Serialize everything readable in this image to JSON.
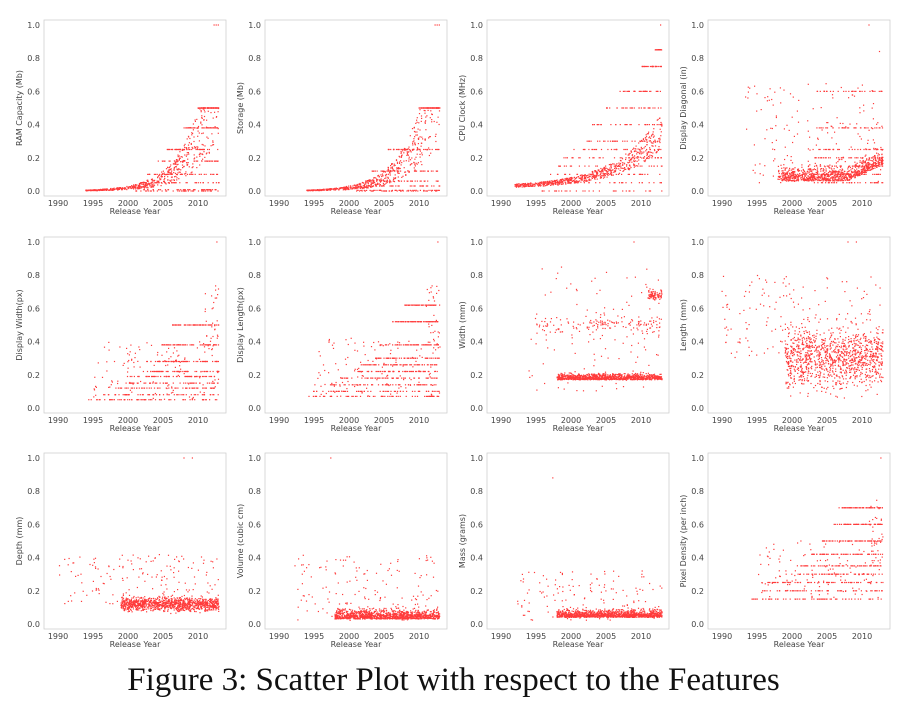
{
  "caption": "Figure 3: Scatter Plot with respect to the Features",
  "colors": {
    "points": "#ff3b3b",
    "frame": "#d0d0d0",
    "text": "#444444"
  },
  "chart_data": [
    {
      "type": "scatter",
      "xlabel": "Release Year",
      "ylabel": "RAM Capacity (Mb)",
      "xlim": [
        1988,
        2014
      ],
      "ylim": [
        -0.03,
        1.03
      ],
      "xticks": [
        "1990",
        "1995",
        "2000",
        "2005",
        "2010"
      ],
      "yticks": [
        "0.0",
        "0.2",
        "0.4",
        "0.6",
        "0.8",
        "1.0"
      ],
      "pattern": "exp",
      "p": [
        0.0,
        0.008,
        0.05,
        0.1,
        0.18,
        0.25,
        0.38,
        0.5
      ],
      "ymax": 1.0
    },
    {
      "type": "scatter",
      "xlabel": "Release Year",
      "ylabel": "Storage (Mb)",
      "xlim": [
        1988,
        2014
      ],
      "ylim": [
        -0.03,
        1.03
      ],
      "xticks": [
        "1990",
        "1995",
        "2000",
        "2005",
        "2010"
      ],
      "yticks": [
        "0.0",
        "0.2",
        "0.4",
        "0.6",
        "0.8",
        "1.0"
      ],
      "pattern": "exp",
      "p": [
        0.0,
        0.004,
        0.03,
        0.06,
        0.12,
        0.25,
        0.5
      ],
      "ymax": 1.0
    },
    {
      "type": "scatter",
      "xlabel": "Release Year",
      "ylabel": "CPU Clock (MHz)",
      "xlim": [
        1988,
        2014
      ],
      "ylim": [
        -0.03,
        1.03
      ],
      "xticks": [
        "1990",
        "1995",
        "2000",
        "2005",
        "2010"
      ],
      "yticks": [
        "0.0",
        "0.2",
        "0.4",
        "0.6",
        "0.8",
        "1.0"
      ],
      "pattern": "exp2",
      "p": [
        0.0,
        0.05,
        0.1,
        0.15,
        0.2,
        0.25,
        0.3,
        0.4,
        0.5,
        0.6,
        0.75,
        0.85
      ],
      "ymax": 1.0
    },
    {
      "type": "scatter",
      "xlabel": "Release Year",
      "ylabel": "Display Diagonal (in)",
      "xlim": [
        1988,
        2014
      ],
      "ylim": [
        -0.03,
        1.03
      ],
      "xticks": [
        "1990",
        "1995",
        "2000",
        "2005",
        "2010"
      ],
      "yticks": [
        "0.0",
        "0.2",
        "0.4",
        "0.6",
        "0.8",
        "1.0"
      ],
      "pattern": "diag",
      "p": [
        0.05,
        0.1,
        0.15,
        0.2,
        0.25,
        0.38,
        0.6
      ],
      "ymax": 1.0
    },
    {
      "type": "scatter",
      "xlabel": "Release Year",
      "ylabel": "Display Width(px)",
      "xlim": [
        1988,
        2014
      ],
      "ylim": [
        -0.03,
        1.03
      ],
      "xticks": [
        "1990",
        "1995",
        "2000",
        "2005",
        "2010"
      ],
      "yticks": [
        "0.0",
        "0.2",
        "0.4",
        "0.6",
        "0.8",
        "1.0"
      ],
      "pattern": "lines",
      "p": [
        0.05,
        0.08,
        0.12,
        0.15,
        0.19,
        0.22,
        0.28,
        0.38,
        0.5
      ],
      "ymax": 1.0
    },
    {
      "type": "scatter",
      "xlabel": "Release Year",
      "ylabel": "Display Length(px)",
      "xlim": [
        1988,
        2014
      ],
      "ylim": [
        -0.03,
        1.03
      ],
      "xticks": [
        "1990",
        "1995",
        "2000",
        "2005",
        "2010"
      ],
      "yticks": [
        "0.0",
        "0.2",
        "0.4",
        "0.6",
        "0.8",
        "1.0"
      ],
      "pattern": "lines",
      "p": [
        0.07,
        0.1,
        0.14,
        0.18,
        0.22,
        0.26,
        0.3,
        0.38,
        0.52,
        0.62
      ],
      "ymax": 1.0
    },
    {
      "type": "scatter",
      "xlabel": "Release Year",
      "ylabel": "Width (mm)",
      "xlim": [
        1988,
        2014
      ],
      "ylim": [
        -0.03,
        1.03
      ],
      "xticks": [
        "1990",
        "1995",
        "2000",
        "2005",
        "2010"
      ],
      "yticks": [
        "0.0",
        "0.2",
        "0.4",
        "0.6",
        "0.8",
        "1.0"
      ],
      "pattern": "width",
      "p": [
        0.17,
        0.5,
        0.68
      ],
      "ymax": 1.0
    },
    {
      "type": "scatter",
      "xlabel": "Release Year",
      "ylabel": "Length (mm)",
      "xlim": [
        1988,
        2014
      ],
      "ylim": [
        -0.03,
        1.03
      ],
      "xticks": [
        "1990",
        "1995",
        "2000",
        "2005",
        "2010"
      ],
      "yticks": [
        "0.0",
        "0.2",
        "0.4",
        "0.6",
        "0.8",
        "1.0"
      ],
      "pattern": "cluster",
      "p": [
        0.3,
        0.27,
        0.5
      ],
      "ymax": 1.0
    },
    {
      "type": "scatter",
      "xlabel": "Release Year",
      "ylabel": "Depth (mm)",
      "xlim": [
        1988,
        2014
      ],
      "ylim": [
        -0.03,
        1.03
      ],
      "xticks": [
        "1990",
        "1995",
        "2000",
        "2005",
        "2010"
      ],
      "yticks": [
        "0.0",
        "0.2",
        "0.4",
        "0.6",
        "0.8",
        "1.0"
      ],
      "pattern": "cluster",
      "p": [
        0.12,
        0.06,
        0.3
      ],
      "ymax": 1.0
    },
    {
      "type": "scatter",
      "xlabel": "Release Year",
      "ylabel": "Volume (cubic cm)",
      "xlim": [
        1988,
        2014
      ],
      "ylim": [
        -0.03,
        1.03
      ],
      "xticks": [
        "1990",
        "1995",
        "2000",
        "2005",
        "2010"
      ],
      "yticks": [
        "0.0",
        "0.2",
        "0.4",
        "0.6",
        "0.8",
        "1.0"
      ],
      "pattern": "low",
      "p": [
        0.03,
        0.08,
        0.4
      ],
      "ymax": 1.0
    },
    {
      "type": "scatter",
      "xlabel": "Release Year",
      "ylabel": "Mass (grams)",
      "xlim": [
        1988,
        2014
      ],
      "ylim": [
        -0.03,
        1.03
      ],
      "xticks": [
        "1990",
        "1995",
        "2000",
        "2005",
        "2010"
      ],
      "yticks": [
        "0.0",
        "0.2",
        "0.4",
        "0.6",
        "0.8",
        "1.0"
      ],
      "pattern": "low",
      "p": [
        0.04,
        0.06,
        0.3
      ],
      "ymax": 0.88
    },
    {
      "type": "scatter",
      "xlabel": "Release Year",
      "ylabel": "Pixel Density (per inch)",
      "xlim": [
        1988,
        2014
      ],
      "ylim": [
        -0.03,
        1.03
      ],
      "xticks": [
        "1990",
        "1995",
        "2000",
        "2005",
        "2010"
      ],
      "yticks": [
        "0.0",
        "0.2",
        "0.4",
        "0.6",
        "0.8",
        "1.0"
      ],
      "pattern": "lines",
      "p": [
        0.15,
        0.2,
        0.25,
        0.3,
        0.35,
        0.42,
        0.5,
        0.6,
        0.7
      ],
      "ymax": 1.0
    }
  ]
}
